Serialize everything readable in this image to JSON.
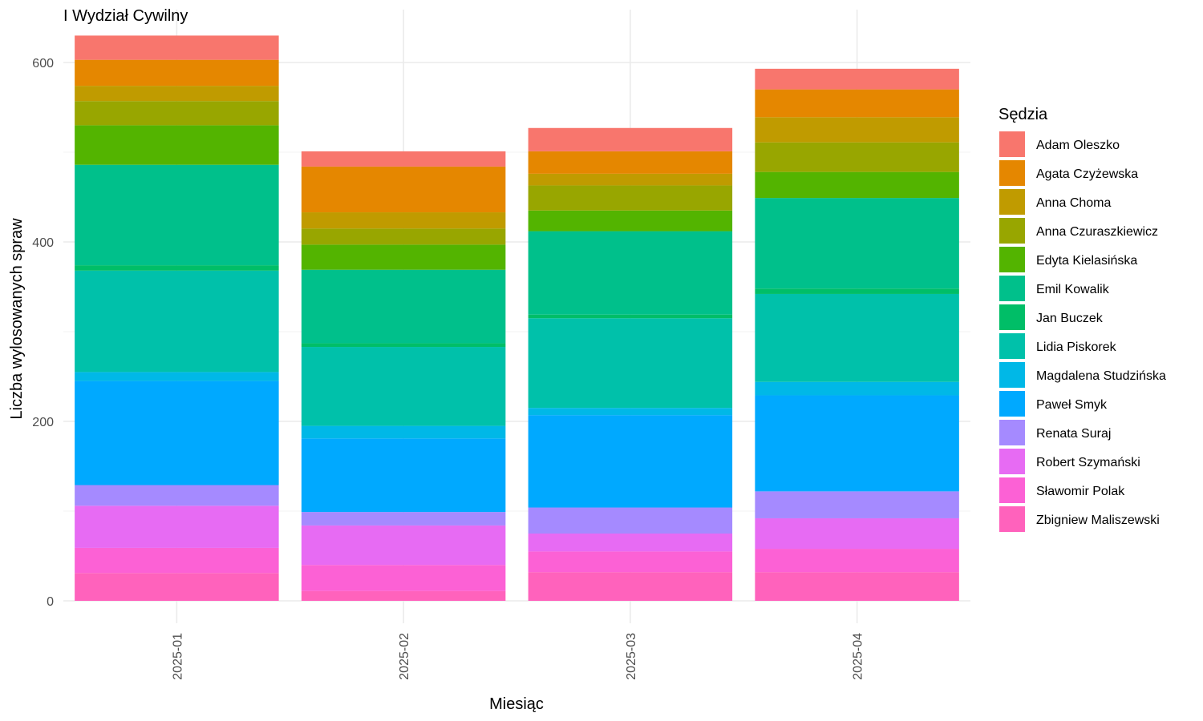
{
  "chart_data": {
    "type": "bar",
    "stacked": true,
    "title": "I Wydział Cywilny",
    "xlabel": "Miesiąc",
    "ylabel": "Liczba wylosowanych spraw",
    "ylim": [
      -25,
      630
    ],
    "yticks": [
      0,
      200,
      400,
      600
    ],
    "grid": true,
    "legend_title": "Sędzia",
    "legend_position": "right",
    "categories": [
      "2025-01",
      "2025-02",
      "2025-03",
      "2025-04"
    ],
    "series": [
      {
        "name": "Zbigniew Maliszewski",
        "color": "#FF62BC",
        "values": [
          31,
          11,
          32,
          32
        ]
      },
      {
        "name": "Sławomir Polak",
        "color": "#FC61D5",
        "values": [
          28,
          29,
          23,
          26
        ]
      },
      {
        "name": "Robert Szymański",
        "color": "#E76BF3",
        "values": [
          47,
          44,
          20,
          34
        ]
      },
      {
        "name": "Renata Suraj",
        "color": "#A58AFF",
        "values": [
          23,
          15,
          29,
          30
        ]
      },
      {
        "name": "Paweł Smyk",
        "color": "#00A9FF",
        "values": [
          116,
          82,
          103,
          107
        ]
      },
      {
        "name": "Magdalena Studzińska",
        "color": "#00B8E7",
        "values": [
          10,
          14,
          8,
          15
        ]
      },
      {
        "name": "Lidia Piskorek",
        "color": "#00C1AA",
        "values": [
          113,
          88,
          100,
          98
        ]
      },
      {
        "name": "Jan Buczek",
        "color": "#00BE67",
        "values": [
          6,
          4,
          4,
          6
        ]
      },
      {
        "name": "Emil Kowalik",
        "color": "#00C08B",
        "values": [
          112,
          82,
          93,
          101
        ]
      },
      {
        "name": "Edyta Kielasińska",
        "color": "#53B400",
        "values": [
          44,
          28,
          23,
          29
        ]
      },
      {
        "name": "Anna Czuraszkiewicz",
        "color": "#98A600",
        "values": [
          27,
          18,
          28,
          33
        ]
      },
      {
        "name": "Anna Choma",
        "color": "#C09B00",
        "values": [
          17,
          18,
          13,
          28
        ]
      },
      {
        "name": "Agata Czyżewska",
        "color": "#E58700",
        "values": [
          29,
          51,
          25,
          31
        ]
      },
      {
        "name": "Adam Oleszko",
        "color": "#F8766D",
        "values": [
          27,
          17,
          26,
          23
        ]
      }
    ]
  }
}
